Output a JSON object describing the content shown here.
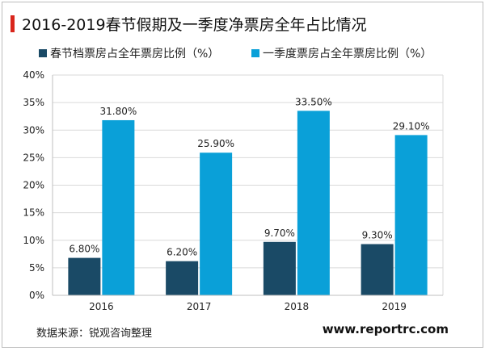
{
  "title": "2016-2019春节假期及一季度净票房全年占比情况",
  "source": "数据来源：锐观咨询整理",
  "website": "www.reportrc.com",
  "colors": {
    "accent": "#d9261c",
    "series1": "#1a4a66",
    "series2": "#0aa0d8"
  },
  "chart_data": {
    "type": "bar",
    "categories": [
      "2016",
      "2017",
      "2018",
      "2019"
    ],
    "series": [
      {
        "name": "春节档票房占全年票房比例（%）",
        "values": [
          6.8,
          6.2,
          9.7,
          9.3
        ],
        "labels": [
          "6.80%",
          "6.20%",
          "9.70%",
          "9.30%"
        ],
        "color": "#1a4a66"
      },
      {
        "name": "一季度票房占全年票房比例（%）",
        "values": [
          31.8,
          25.9,
          33.5,
          29.1
        ],
        "labels": [
          "31.80%",
          "25.90%",
          "33.50%",
          "29.10%"
        ],
        "color": "#0aa0d8"
      }
    ],
    "yticks": [
      "0%",
      "5%",
      "10%",
      "15%",
      "20%",
      "25%",
      "30%",
      "35%",
      "40%"
    ],
    "ylim": [
      0,
      40
    ],
    "grid": true,
    "legend": "top-left"
  }
}
